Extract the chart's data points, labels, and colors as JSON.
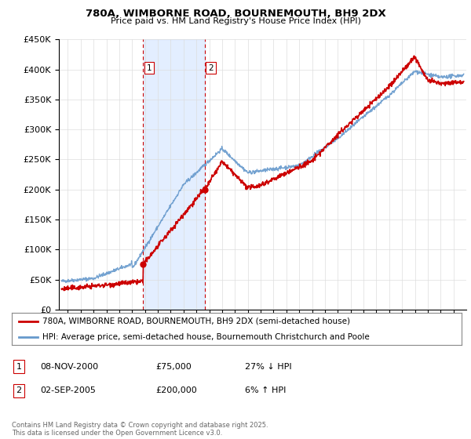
{
  "title": "780A, WIMBORNE ROAD, BOURNEMOUTH, BH9 2DX",
  "subtitle": "Price paid vs. HM Land Registry's House Price Index (HPI)",
  "ylim": [
    0,
    450000
  ],
  "yticks": [
    0,
    50000,
    100000,
    150000,
    200000,
    250000,
    300000,
    350000,
    400000,
    450000
  ],
  "ytick_labels": [
    "£0",
    "£50K",
    "£100K",
    "£150K",
    "£200K",
    "£250K",
    "£300K",
    "£350K",
    "£400K",
    "£450K"
  ],
  "xlim_left": 1994.3,
  "xlim_right": 2026.0,
  "sale1_x": 2000.856,
  "sale1_y": 75000,
  "sale2_x": 2005.671,
  "sale2_y": 200000,
  "legend_line1": "780A, WIMBORNE ROAD, BOURNEMOUTH, BH9 2DX (semi-detached house)",
  "legend_line2": "HPI: Average price, semi-detached house, Bournemouth Christchurch and Poole",
  "table_row1": [
    "1",
    "08-NOV-2000",
    "£75,000",
    "27% ↓ HPI"
  ],
  "table_row2": [
    "2",
    "02-SEP-2005",
    "£200,000",
    "6% ↑ HPI"
  ],
  "footer": "Contains HM Land Registry data © Crown copyright and database right 2025.\nThis data is licensed under the Open Government Licence v3.0.",
  "line_red_color": "#cc0000",
  "line_blue_color": "#6699cc",
  "shade_color": "#cce0ff",
  "dashed_color": "#cc0000",
  "background_color": "#ffffff",
  "grid_color": "#dddddd"
}
